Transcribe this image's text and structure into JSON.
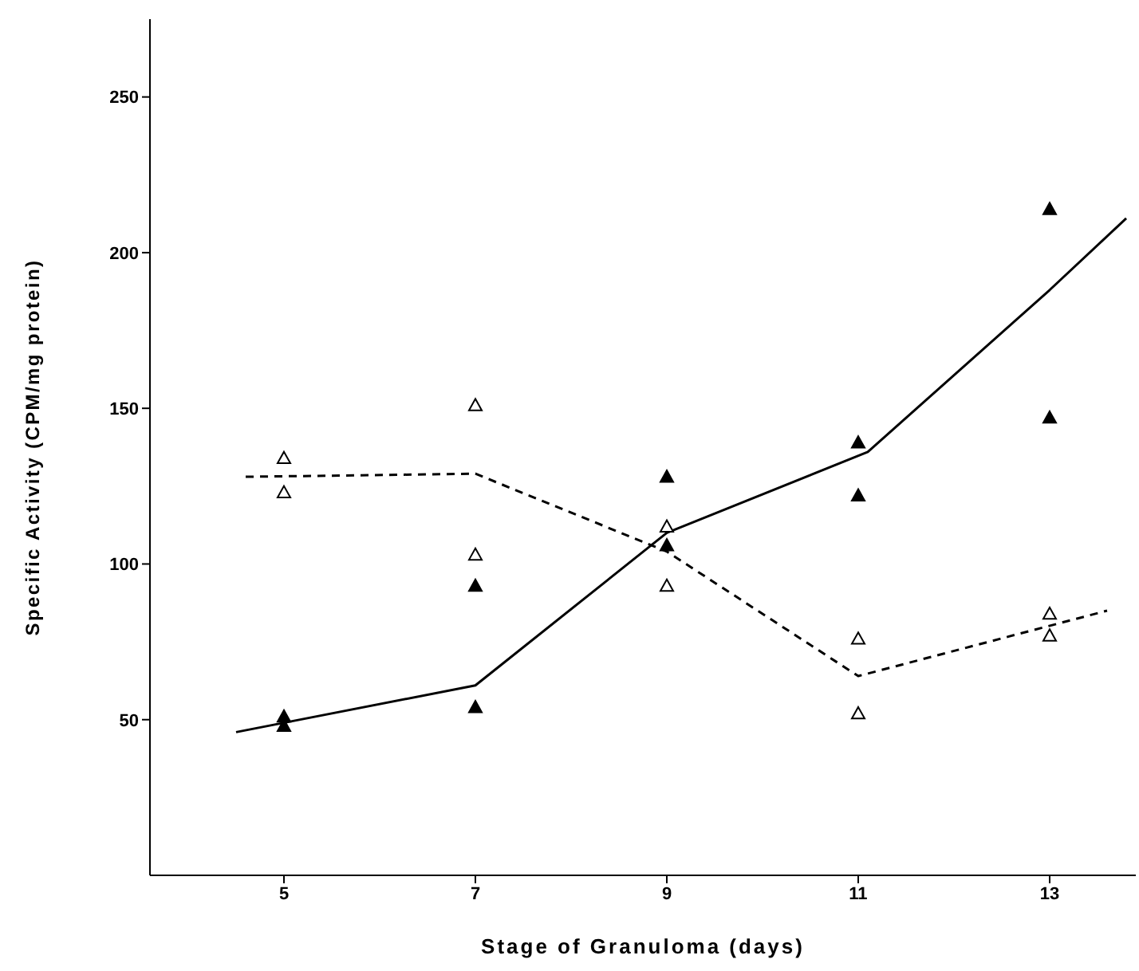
{
  "chart_data": {
    "type": "scatter",
    "xlabel": "Stage of Granuloma  (days)",
    "ylabel": "Specific Activity  (CPM/mg protein)",
    "xlim": [
      3.6,
      13.9
    ],
    "xticks": [
      5,
      7,
      9,
      11,
      13
    ],
    "ylim": [
      0,
      275
    ],
    "yticks": [
      50,
      100,
      150,
      200,
      250
    ],
    "grid": false,
    "legend": false,
    "series": [
      {
        "color": "#000000",
        "marker": "triangle",
        "x": [
          5,
          5,
          7,
          7,
          9,
          9,
          11,
          11,
          13,
          13
        ],
        "values": [
          51,
          48,
          93,
          54,
          128,
          106,
          139,
          122,
          214,
          147
        ]
      },
      {
        "color": "#ffffff",
        "marker": "triangle",
        "x": [
          5,
          5,
          7,
          7,
          9,
          9,
          11,
          11,
          13,
          13
        ],
        "values": [
          134,
          123,
          151,
          103,
          112,
          93,
          76,
          52,
          84,
          77
        ]
      },
      {
        "type": "line",
        "color": "#000000",
        "marker": "none",
        "line_style": "solid",
        "x": [
          4.5,
          5,
          7,
          9,
          11.1,
          13,
          13.8
        ],
        "values": [
          46,
          49,
          61,
          110,
          136,
          188,
          211
        ]
      },
      {
        "type": "line",
        "color": "#000000",
        "marker": "none",
        "line_style": "dashed",
        "x": [
          4.6,
          7,
          9,
          11,
          13.6
        ],
        "values": [
          128,
          129,
          104,
          64,
          85
        ]
      }
    ]
  }
}
